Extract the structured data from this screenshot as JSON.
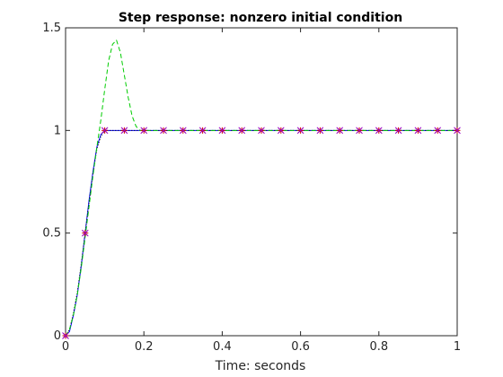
{
  "chart_data": {
    "type": "line",
    "title": "Step response: nonzero initial condition",
    "xlabel": "Time: seconds",
    "ylabel": "",
    "xlim": [
      0,
      1
    ],
    "ylim": [
      0,
      1.5
    ],
    "xticks": [
      0,
      0.2,
      0.4,
      0.6,
      0.8,
      1
    ],
    "xtick_labels": [
      "0",
      "0.2",
      "0.4",
      "0.6",
      "0.8",
      "1"
    ],
    "yticks": [
      0,
      0.5,
      1,
      1.5
    ],
    "ytick_labels": [
      "0",
      "0.5",
      "1",
      "1.5"
    ],
    "grid": false,
    "legend": "none",
    "series": [
      {
        "style": "solid",
        "color": "#0000ff",
        "x": [
          0,
          0.01,
          0.02,
          0.03,
          0.04,
          0.05,
          0.06,
          0.07,
          0.08,
          0.09,
          0.1,
          0.12,
          0.15,
          0.2,
          0.3,
          0.4,
          0.5,
          0.6,
          0.7,
          0.8,
          0.9,
          1.0
        ],
        "values": [
          0,
          0.02,
          0.1,
          0.2,
          0.34,
          0.5,
          0.66,
          0.8,
          0.92,
          0.98,
          1.0,
          1.0,
          1.0,
          1.0,
          1.0,
          1.0,
          1.0,
          1.0,
          1.0,
          1.0,
          1.0,
          1.0
        ]
      },
      {
        "style": "dotted",
        "color": "#000000",
        "x": [
          0,
          0.01,
          0.02,
          0.03,
          0.04,
          0.05,
          0.06,
          0.07,
          0.08,
          0.09,
          0.1,
          0.12,
          0.15,
          0.2,
          0.3,
          0.4,
          0.5,
          0.6,
          0.7,
          0.8,
          0.9,
          1.0
        ],
        "values": [
          0,
          0.03,
          0.11,
          0.21,
          0.35,
          0.5,
          0.65,
          0.79,
          0.91,
          0.97,
          1.0,
          1.0,
          1.0,
          1.0,
          1.0,
          1.0,
          1.0,
          1.0,
          1.0,
          1.0,
          1.0,
          1.0
        ]
      },
      {
        "style": "dashed",
        "color": "#00cc00",
        "x": [
          0,
          0.01,
          0.02,
          0.03,
          0.04,
          0.05,
          0.06,
          0.07,
          0.08,
          0.09,
          0.1,
          0.11,
          0.12,
          0.13,
          0.14,
          0.15,
          0.16,
          0.17,
          0.18,
          0.19,
          0.2,
          0.25,
          0.3,
          0.4,
          0.5,
          0.6,
          0.7,
          0.8,
          0.9,
          1.0
        ],
        "values": [
          0,
          0.03,
          0.1,
          0.2,
          0.33,
          0.48,
          0.63,
          0.78,
          0.92,
          1.05,
          1.2,
          1.34,
          1.42,
          1.44,
          1.38,
          1.27,
          1.16,
          1.07,
          1.02,
          1.0,
          1.0,
          1.0,
          1.0,
          1.0,
          1.0,
          1.0,
          1.0,
          1.0,
          1.0,
          1.0
        ]
      },
      {
        "style": "markers",
        "marker": "asterisk",
        "color": "#cc0000",
        "x": [
          0,
          0.05,
          0.1,
          0.15,
          0.2,
          0.25,
          0.3,
          0.35,
          0.4,
          0.45,
          0.5,
          0.55,
          0.6,
          0.65,
          0.7,
          0.75,
          0.8,
          0.85,
          0.9,
          0.95,
          1.0
        ],
        "values": [
          0,
          0.5,
          1,
          1,
          1,
          1,
          1,
          1,
          1,
          1,
          1,
          1,
          1,
          1,
          1,
          1,
          1,
          1,
          1,
          1,
          1
        ]
      },
      {
        "style": "markers",
        "marker": "cross",
        "color": "#9900cc",
        "x": [
          0,
          0.05,
          0.1,
          0.15,
          0.2,
          0.25,
          0.3,
          0.35,
          0.4,
          0.45,
          0.5,
          0.55,
          0.6,
          0.65,
          0.7,
          0.75,
          0.8,
          0.85,
          0.9,
          0.95,
          1.0
        ],
        "values": [
          0,
          0.5,
          1,
          1,
          1,
          1,
          1,
          1,
          1,
          1,
          1,
          1,
          1,
          1,
          1,
          1,
          1,
          1,
          1,
          1,
          1
        ]
      }
    ]
  }
}
